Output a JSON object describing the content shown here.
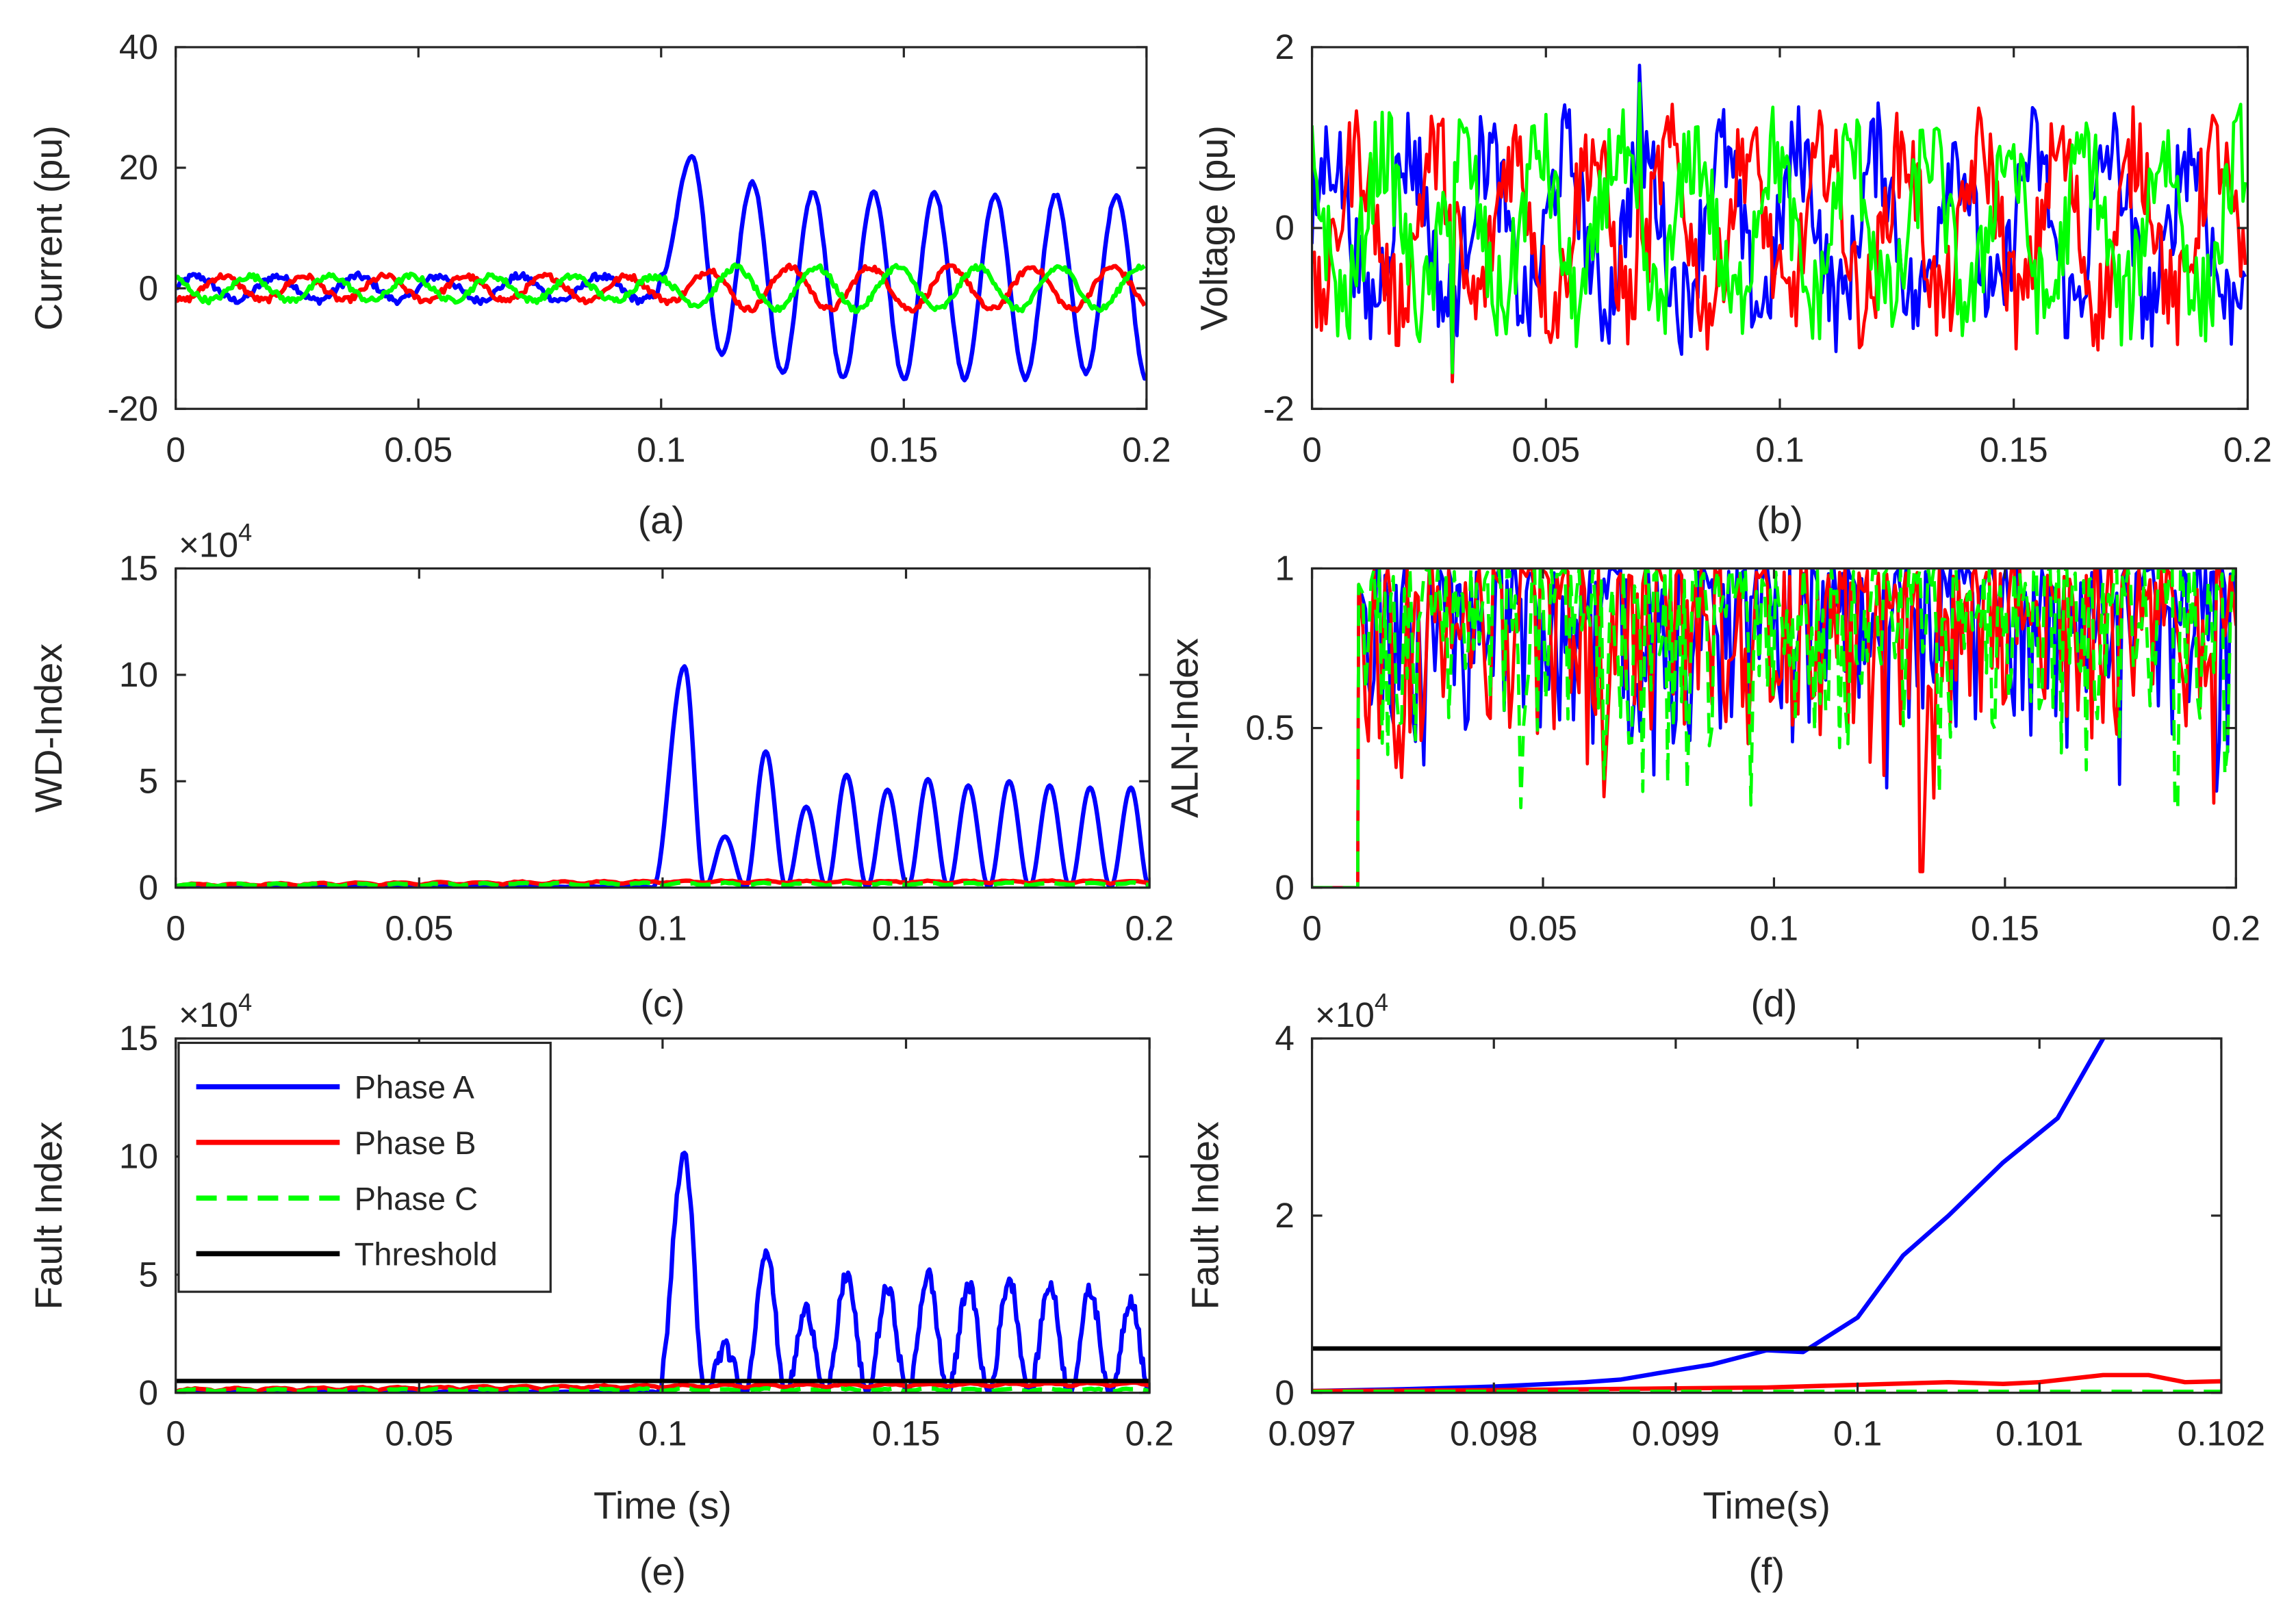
{
  "colors": {
    "phase_a": "#0000ff",
    "phase_b": "#ff0000",
    "phase_c": "#00ff00",
    "threshold": "#000000",
    "axis": "#262626"
  },
  "legend": {
    "entries": [
      {
        "label": "Phase A",
        "color": "#0000ff",
        "style": "solid"
      },
      {
        "label": "Phase B",
        "color": "#ff0000",
        "style": "solid"
      },
      {
        "label": "Phase C",
        "color": "#00ff00",
        "style": "dashed"
      },
      {
        "label": "Threshold",
        "color": "#000000",
        "style": "solid"
      }
    ],
    "placement": "top-left of panel (e)"
  },
  "chart_data": [
    {
      "id": "a",
      "caption": "(a)",
      "type": "line",
      "xlabel": "",
      "ylabel": "Current (pu)",
      "xlim": [
        0,
        0.2
      ],
      "ylim": [
        -20,
        40
      ],
      "xticks": [
        "0",
        "0.05",
        "0.1",
        "0.15",
        "0.2"
      ],
      "yticks": [
        "-20",
        "0",
        "20",
        "40"
      ],
      "exponent": "",
      "series": [
        {
          "name": "Phase A",
          "color": "#0000ff",
          "style": "solid",
          "x": [
            0,
            0.025,
            0.05,
            0.075,
            0.098,
            0.1,
            0.1063,
            0.1125,
            0.1188,
            0.125,
            0.1313,
            0.1375,
            0.1438,
            0.15,
            0.1563,
            0.1625,
            0.1688,
            0.175,
            0.1813,
            0.1875,
            0.1938,
            0.2
          ],
          "y": [
            2,
            2,
            2,
            2,
            2,
            2,
            22,
            -11,
            17.5,
            -14,
            16,
            -15,
            16,
            -15,
            16,
            -15,
            15.5,
            -15,
            15.5,
            -14,
            15.5,
            -15
          ]
        },
        {
          "name": "Phase B",
          "color": "#ff0000",
          "style": "solid",
          "x": [
            0,
            0.025,
            0.05,
            0.075,
            0.1,
            0.125,
            0.15,
            0.175,
            0.2
          ],
          "y": [
            -1.5,
            -1.5,
            -1.5,
            -1.5,
            -2,
            3,
            3.5,
            3.5,
            3.5
          ]
        },
        {
          "name": "Phase C",
          "color": "#00ff00",
          "style": "solid",
          "x": [
            0,
            0.025,
            0.05,
            0.075,
            0.1,
            0.125,
            0.15,
            0.175,
            0.2
          ],
          "y": [
            2,
            2,
            2,
            2,
            2,
            3,
            3.5,
            3.5,
            3.5
          ]
        }
      ]
    },
    {
      "id": "b",
      "caption": "(b)",
      "type": "line",
      "xlabel": "",
      "ylabel": "Voltage (pu)",
      "xlim": [
        0,
        0.2
      ],
      "ylim": [
        -2,
        2
      ],
      "xticks": [
        "0",
        "0.05",
        "0.1",
        "0.15",
        "0.2"
      ],
      "yticks": [
        "-2",
        "0",
        "2"
      ],
      "exponent": "",
      "series": [
        {
          "name": "Phase A",
          "color": "#0000ff",
          "style": "solid",
          "x": [
            0,
            0.2
          ],
          "y": [
            -1.7,
            1.8
          ]
        },
        {
          "name": "Phase B",
          "color": "#ff0000",
          "style": "solid",
          "x": [
            0,
            0.2
          ],
          "y": [
            -1.7,
            1.4
          ]
        },
        {
          "name": "Phase C",
          "color": "#00ff00",
          "style": "solid",
          "x": [
            0,
            0.2
          ],
          "y": [
            -1.6,
            1.6
          ]
        }
      ]
    },
    {
      "id": "c",
      "caption": "(c)",
      "type": "line",
      "xlabel": "",
      "ylabel": "WD-Index",
      "xlim": [
        0,
        0.2
      ],
      "ylim": [
        0,
        15
      ],
      "xticks": [
        "0",
        "0.05",
        "0.1",
        "0.15",
        "0.2"
      ],
      "yticks": [
        "0",
        "5",
        "10",
        "15"
      ],
      "exponent": "4",
      "series": [
        {
          "name": "Phase A",
          "color": "#0000ff",
          "style": "solid",
          "x": [
            0.098,
            0.1045,
            0.1128,
            0.1212,
            0.1295,
            0.1378,
            0.1462,
            0.1545,
            0.1628,
            0.1712,
            0.1795,
            0.1878,
            0.1962
          ],
          "y": [
            0,
            10.4,
            2.4,
            6.4,
            3.8,
            5.3,
            4.6,
            5.1,
            4.8,
            5.0,
            4.8,
            4.7,
            4.7
          ]
        },
        {
          "name": "Phase B",
          "color": "#ff0000",
          "style": "solid",
          "x": [
            0,
            0.1,
            0.2
          ],
          "y": [
            0.05,
            0.2,
            0.2
          ]
        },
        {
          "name": "Phase C",
          "color": "#00ff00",
          "style": "dashed",
          "x": [
            0,
            0.1,
            0.2
          ],
          "y": [
            0.05,
            0.1,
            0.1
          ]
        }
      ]
    },
    {
      "id": "d",
      "caption": "(d)",
      "type": "line",
      "xlabel": "",
      "ylabel": "ALN-Index",
      "xlim": [
        0,
        0.2
      ],
      "ylim": [
        0,
        1
      ],
      "xticks": [
        "0",
        "0.05",
        "0.1",
        "0.15",
        "0.2"
      ],
      "yticks": [
        "0",
        "0.5",
        "1"
      ],
      "exponent": "",
      "series": [
        {
          "name": "Phase A",
          "color": "#0000ff",
          "style": "solid",
          "x": [
            0,
            0.01,
            0.2
          ],
          "y": [
            0,
            1,
            1
          ]
        },
        {
          "name": "Phase B",
          "color": "#ff0000",
          "style": "solid",
          "x": [
            0,
            0.01,
            0.132,
            0.2
          ],
          "y": [
            0,
            1,
            0.05,
            1
          ]
        },
        {
          "name": "Phase C",
          "color": "#00ff00",
          "style": "dashed",
          "x": [
            0,
            0.01,
            0.187,
            0.2
          ],
          "y": [
            0,
            1,
            0.25,
            1
          ]
        }
      ]
    },
    {
      "id": "e",
      "caption": "(e)",
      "type": "line",
      "xlabel": "Time (s)",
      "ylabel": "Fault Index",
      "xlim": [
        0,
        0.2
      ],
      "ylim": [
        0,
        15
      ],
      "xticks": [
        "0",
        "0.05",
        "0.1",
        "0.15",
        "0.2"
      ],
      "yticks": [
        "0",
        "5",
        "10",
        "15"
      ],
      "exponent": "4",
      "series": [
        {
          "name": "Phase A",
          "color": "#0000ff",
          "style": "solid",
          "x": [
            0.099,
            0.1045,
            0.1128,
            0.1212,
            0.1295,
            0.1378,
            0.1462,
            0.1545,
            0.1628,
            0.1712,
            0.1795,
            0.1878,
            0.1962
          ],
          "y": [
            0,
            10.1,
            1.9,
            6.1,
            3.5,
            5.0,
            4.4,
            5.0,
            4.6,
            4.8,
            4.6,
            4.3,
            4.0
          ]
        },
        {
          "name": "Phase B",
          "color": "#ff0000",
          "style": "solid",
          "x": [
            0,
            0.1,
            0.2
          ],
          "y": [
            0.05,
            0.2,
            0.3
          ]
        },
        {
          "name": "Phase C",
          "color": "#00ff00",
          "style": "dashed",
          "x": [
            0,
            0.1,
            0.2
          ],
          "y": [
            0.02,
            0.05,
            0.05
          ]
        },
        {
          "name": "Threshold",
          "color": "#000000",
          "style": "solid",
          "x": [
            0,
            0.2
          ],
          "y": [
            0.5,
            0.5
          ]
        }
      ]
    },
    {
      "id": "f",
      "caption": "(f)",
      "type": "line",
      "xlabel": "Time(s)",
      "ylabel": "Fault Index",
      "xlim": [
        0.097,
        0.102
      ],
      "ylim": [
        0,
        4
      ],
      "xticks": [
        "0.097",
        "0.098",
        "0.099",
        "0.1",
        "0.101",
        "0.102"
      ],
      "yticks": [
        "0",
        "2",
        "4"
      ],
      "exponent": "4",
      "series": [
        {
          "name": "Phase A",
          "color": "#0000ff",
          "style": "solid",
          "x": [
            0.097,
            0.0975,
            0.098,
            0.0985,
            0.0987,
            0.0989,
            0.0992,
            0.0995,
            0.0997,
            0.1,
            0.10025,
            0.1005,
            0.1008,
            0.1011,
            0.10135
          ],
          "y": [
            0.02,
            0.04,
            0.07,
            0.12,
            0.15,
            0.22,
            0.32,
            0.48,
            0.46,
            0.85,
            1.55,
            2.0,
            2.6,
            3.1,
            4.0
          ]
        },
        {
          "name": "Phase B",
          "color": "#ff0000",
          "style": "solid",
          "x": [
            0.097,
            0.098,
            0.099,
            0.0995,
            0.1,
            0.1005,
            0.1008,
            0.101,
            0.10135,
            0.1016,
            0.1018,
            0.102
          ],
          "y": [
            0.02,
            0.03,
            0.05,
            0.06,
            0.09,
            0.12,
            0.1,
            0.12,
            0.2,
            0.2,
            0.12,
            0.13
          ]
        },
        {
          "name": "Phase C",
          "color": "#00ff00",
          "style": "dashed",
          "x": [
            0.097,
            0.102
          ],
          "y": [
            0.01,
            0.01
          ]
        },
        {
          "name": "Threshold",
          "color": "#000000",
          "style": "solid",
          "x": [
            0.097,
            0.102
          ],
          "y": [
            0.5,
            0.5
          ]
        }
      ]
    }
  ]
}
